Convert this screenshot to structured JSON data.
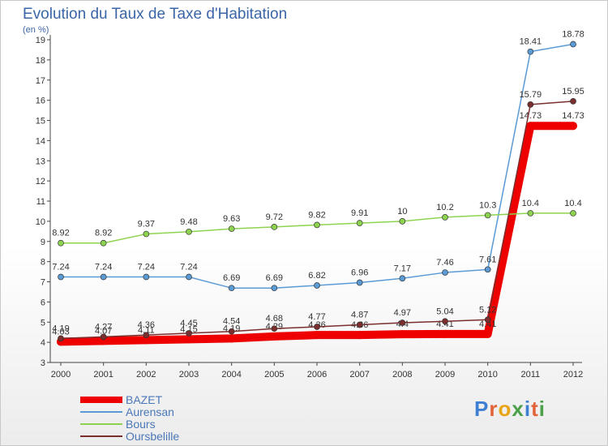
{
  "title": "Evolution du Taux de Taxe d'Habitation",
  "subtitle": "(en %)",
  "brand": {
    "letters": [
      {
        "ch": "P",
        "color": "#3d7fd1"
      },
      {
        "ch": "r",
        "color": "#e2623a"
      },
      {
        "ch": "o",
        "color": "#e7a417"
      },
      {
        "ch": "x",
        "color": "#4ba04a"
      },
      {
        "ch": "i",
        "color": "#3d7fd1"
      },
      {
        "ch": "t",
        "color": "#e2623a"
      },
      {
        "ch": "i",
        "color": "#4ba04a"
      }
    ]
  },
  "chart_data": {
    "type": "line",
    "title": "Evolution du Taux de Taxe d'Habitation",
    "ylabel": "(en %)",
    "xlabel": "",
    "x": [
      "2000",
      "2001",
      "2002",
      "2003",
      "2004",
      "2005",
      "2006",
      "2007",
      "2008",
      "2009",
      "2010",
      "2011",
      "2012"
    ],
    "ylim": [
      3,
      19
    ],
    "yticks": [
      "3",
      "4",
      "5",
      "6",
      "7",
      "8",
      "9",
      "10",
      "11",
      "12",
      "13",
      "14",
      "15",
      "16",
      "17",
      "18",
      "19"
    ],
    "grid": false,
    "legend": "bottom-left",
    "series": [
      {
        "name": "BAZET",
        "color": "#ee0000",
        "width": "thick",
        "values": [
          4.03,
          4.07,
          4.11,
          4.15,
          4.19,
          4.29,
          4.36,
          4.36,
          4.4,
          4.41,
          4.41,
          14.73,
          14.73
        ],
        "labels": [
          "4.03",
          "4.07",
          "4.11",
          "4.15",
          "4.19",
          "4.29",
          "4.36",
          "4.36",
          "4.4",
          "4.41",
          "4.41",
          "14.73",
          "14.73"
        ]
      },
      {
        "name": "Aurensan",
        "color": "#5b9bd5",
        "width": "thin",
        "values": [
          7.24,
          7.24,
          7.24,
          7.24,
          6.69,
          6.69,
          6.82,
          6.96,
          7.17,
          7.46,
          7.61,
          18.41,
          18.78
        ],
        "labels": [
          "7.24",
          "7.24",
          "7.24",
          "7.24",
          "6.69",
          "6.69",
          "6.82",
          "6.96",
          "7.17",
          "7.46",
          "7.61",
          "18.41",
          "18.78"
        ]
      },
      {
        "name": "Bours",
        "color": "#8ed34f",
        "width": "thin",
        "values": [
          8.92,
          8.92,
          9.37,
          9.48,
          9.63,
          9.72,
          9.82,
          9.91,
          10,
          10.2,
          10.3,
          10.4,
          10.4
        ],
        "labels": [
          "8.92",
          "8.92",
          "9.37",
          "9.48",
          "9.63",
          "9.72",
          "9.82",
          "9.91",
          "10",
          "10.2",
          "10.3",
          "10.4",
          "10.4"
        ]
      },
      {
        "name": "Oursbelille",
        "color": "#7b2e2e",
        "width": "thin",
        "values": [
          4.19,
          4.27,
          4.36,
          4.45,
          4.54,
          4.68,
          4.77,
          4.87,
          4.97,
          5.04,
          5.12,
          15.79,
          15.95
        ],
        "labels": [
          "4.19",
          "4.27",
          "4.36",
          "4.45",
          "4.54",
          "4.68",
          "4.77",
          "4.87",
          "4.97",
          "5.04",
          "5.12",
          "15.79",
          "15.95"
        ]
      }
    ]
  }
}
